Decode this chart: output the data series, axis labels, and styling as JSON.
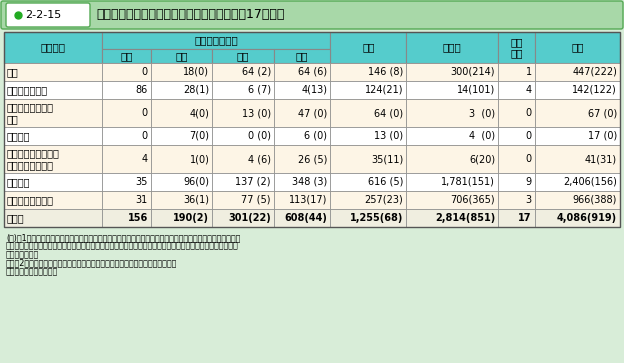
{
  "title_label": "図表●2-2-15",
  "title_main": "公立学校教育職員の懲戒処分等の状況（平成17年度）",
  "col_headers_row1": [
    "処分事由",
    "懲戒処分の種類",
    "合計",
    "訓告等",
    "諭旨\n免職",
    "総計"
  ],
  "col_headers_row2": [
    "免職",
    "停職",
    "減給",
    "戒告"
  ],
  "rows": [
    [
      "体罰",
      "0",
      "18(0)",
      "64 (2)",
      "64 (6)",
      "146 (8)",
      "300(214)",
      "1",
      "447(222)"
    ],
    [
      "わいせつ行為等",
      "86",
      "28(1)",
      "6 (7)",
      "4(13)",
      "124(21)",
      "14(101)",
      "4",
      "142(122)"
    ],
    [
      "国旗・国歌の取扱\nい等",
      "0",
      "4(0)",
      "13 (0)",
      "47 (0)",
      "64 (0)",
      "3  (0)",
      "0",
      "67 (0)"
    ],
    [
      "争議行為",
      "0",
      "7(0)",
      "0 (0)",
      "6 (0)",
      "13 (0)",
      "4  (0)",
      "0",
      "17 (0)"
    ],
    [
      "公費の不正執行又は\n手当等の不正受給",
      "4",
      "1(0)",
      "4 (6)",
      "26 (5)",
      "35(11)",
      "6(20)",
      "0",
      "41(31)"
    ],
    [
      "交通事故",
      "35",
      "96(0)",
      "137 (2)",
      "348 (3)",
      "616 (5)",
      "1,781(151)",
      "9",
      "2,406(156)"
    ],
    [
      "その他の服務違反",
      "31",
      "36(1)",
      "77 (5)",
      "113(17)",
      "257(23)",
      "706(365)",
      "3",
      "966(388)"
    ],
    [
      "合　計",
      "156",
      "190(2)",
      "301(22)",
      "608(44)",
      "1,255(68)",
      "2,814(851)",
      "17",
      "4,086(919)"
    ]
  ],
  "notes": [
    "(注)　1　教育職員とは，公立の小学校，中学校，高等学校，中等教育学校，自学校，聾学校又は養護学校の",
    "　　　　校長，教頭，教諭，助教諭，講師，養護教諭，養護助教諭，栄養教諭，実習助手及び寄宿舎指導員を",
    "　　　　いう。",
    "　　　2　（　）は，監督責任により懲戒処分を受けた者の数で，外数である。",
    "（資料）文部科学省調べ"
  ],
  "bg_outer": "#D8EDD8",
  "bg_title_bar": "#A8D8A8",
  "bg_label_box": "#FFFFFF",
  "bullet_color": "#22AA22",
  "bg_header": "#55CCCC",
  "bg_data_odd": "#FDF5E6",
  "bg_data_even": "#FFFFFF",
  "bg_last_row": "#F0EEE0",
  "border_color": "#888888",
  "title_font_size": 9,
  "header_font_size": 7.5,
  "data_font_size": 7,
  "note_font_size": 5.8
}
